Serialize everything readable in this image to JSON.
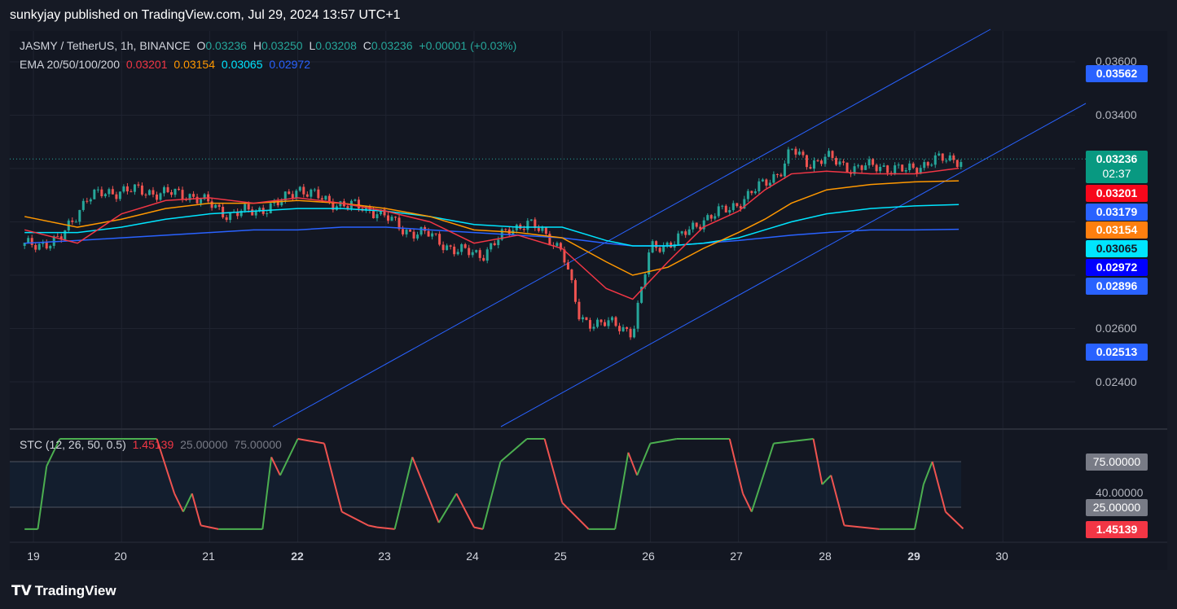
{
  "header": {
    "title": "sunkyjay published on TradingView.com, Jul 29, 2024 13:57 UTC+1"
  },
  "legend": {
    "symbol": "JASMY / TetherUS, 1h, BINANCE",
    "o_label": "O",
    "o": "0.03236",
    "h_label": "H",
    "h": "0.03250",
    "l_label": "L",
    "l": "0.03208",
    "c_label": "C",
    "c": "0.03236",
    "change": "+0.00001 (+0.03%)",
    "ema_label": "EMA 20/50/100/200",
    "ema20": "0.03201",
    "ema50": "0.03154",
    "ema100": "0.03065",
    "ema200": "0.02972",
    "stc_label": "STC (12, 26, 50, 0.5)",
    "stc_value": "1.45139",
    "stc_lower": "25.00000",
    "stc_upper": "75.00000"
  },
  "price_axis": [
    "0.03600",
    "0.03400",
    "0.02600",
    "0.02400"
  ],
  "stc_axis": [
    "40.00000"
  ],
  "chips": {
    "upper_channel": "0.03562",
    "last_price": "0.03236",
    "countdown": "02:37",
    "ema20": "0.03201",
    "mid_channel": "0.03179",
    "ema50": "0.03154",
    "ema100": "0.03065",
    "ema200": "0.02972",
    "line_a": "0.02896",
    "lower_channel": "0.02513",
    "stc_upper": "75.00000",
    "stc_lower": "25.00000",
    "stc_value": "1.45139"
  },
  "dates": [
    "19",
    "20",
    "21",
    "22",
    "23",
    "24",
    "25",
    "26",
    "27",
    "28",
    "29",
    "30"
  ],
  "colors": {
    "ema20": "#f23645",
    "ema50": "#ff9800",
    "ema100": "#00e5ff",
    "ema200": "#2962ff",
    "up": "#26a69a",
    "down": "#ef5350",
    "channel": "#2962ff",
    "stc_up": "#4caf50",
    "stc_down": "#ef5350"
  },
  "footer": {
    "brand": "TradingView"
  },
  "chart_data": [
    {
      "type": "line",
      "title": "JASMY / TetherUS, 1h, BINANCE",
      "x_dates": [
        "19",
        "20",
        "21",
        "22",
        "23",
        "24",
        "25",
        "26",
        "27",
        "28",
        "29",
        "30"
      ],
      "ylim": [
        0.0232,
        0.037
      ],
      "close_approx": {
        "x": [
          18.9,
          19.3,
          19.6,
          20.0,
          20.4,
          20.8,
          21.2,
          21.5,
          21.8,
          22.0,
          22.3,
          22.6,
          22.9,
          23.2,
          23.5,
          23.8,
          24.1,
          24.4,
          24.6,
          24.8,
          25.0,
          25.2,
          25.5,
          25.8,
          26.0,
          26.3,
          26.6,
          26.9,
          27.2,
          27.5,
          27.6,
          27.8,
          28.0,
          28.3,
          28.6,
          28.9,
          29.2,
          29.5
        ],
        "y": [
          0.0291,
          0.0293,
          0.0309,
          0.0312,
          0.0311,
          0.031,
          0.0303,
          0.0304,
          0.0307,
          0.0313,
          0.0308,
          0.0306,
          0.0304,
          0.0297,
          0.0295,
          0.0289,
          0.0288,
          0.0297,
          0.03,
          0.0295,
          0.029,
          0.0263,
          0.0262,
          0.0259,
          0.029,
          0.0293,
          0.0301,
          0.0305,
          0.0312,
          0.032,
          0.0327,
          0.0322,
          0.0324,
          0.032,
          0.0321,
          0.0319,
          0.0323,
          0.03236
        ]
      },
      "ema20_x": [
        18.9,
        19.5,
        20.0,
        20.5,
        21.0,
        21.5,
        22.0,
        22.5,
        23.0,
        23.5,
        24.0,
        24.5,
        25.0,
        25.5,
        25.8,
        26.2,
        26.6,
        27.0,
        27.3,
        27.6,
        28.0,
        28.5,
        29.0,
        29.5
      ],
      "ema20_y": [
        0.0297,
        0.0292,
        0.0303,
        0.0308,
        0.0309,
        0.0307,
        0.0309,
        0.0307,
        0.0304,
        0.03,
        0.0292,
        0.0295,
        0.029,
        0.0275,
        0.0271,
        0.0285,
        0.0298,
        0.0304,
        0.0312,
        0.0318,
        0.0319,
        0.0318,
        0.0318,
        0.03201
      ],
      "ema50_y": [
        0.0302,
        0.0298,
        0.0301,
        0.0305,
        0.0307,
        0.0307,
        0.0308,
        0.0307,
        0.0305,
        0.0302,
        0.0297,
        0.0296,
        0.0294,
        0.0285,
        0.028,
        0.0283,
        0.029,
        0.0296,
        0.0301,
        0.0307,
        0.0312,
        0.0314,
        0.0315,
        0.03154
      ],
      "ema100_y": [
        0.0296,
        0.0296,
        0.0298,
        0.0301,
        0.0303,
        0.0304,
        0.0305,
        0.0305,
        0.0304,
        0.0302,
        0.0299,
        0.0298,
        0.0298,
        0.0293,
        0.0291,
        0.0291,
        0.0292,
        0.0294,
        0.0297,
        0.03,
        0.0303,
        0.0305,
        0.0306,
        0.03065
      ],
      "ema200_y": [
        0.0292,
        0.0293,
        0.0294,
        0.0295,
        0.0296,
        0.0297,
        0.0297,
        0.0298,
        0.0298,
        0.0297,
        0.0296,
        0.0295,
        0.0294,
        0.0292,
        0.0291,
        0.0291,
        0.0292,
        0.0293,
        0.0294,
        0.0295,
        0.0296,
        0.0297,
        0.0297,
        0.02972
      ]
    },
    {
      "type": "line",
      "title": "STC (12, 26, 50, 0.5)",
      "ylim": [
        -5,
        100
      ],
      "levels": [
        25,
        75
      ],
      "x": [
        18.9,
        19.05,
        19.15,
        19.3,
        20.4,
        20.6,
        20.7,
        20.8,
        20.9,
        21.1,
        21.6,
        21.7,
        21.8,
        22.0,
        22.3,
        22.5,
        22.8,
        22.9,
        23.1,
        23.3,
        23.6,
        23.8,
        24.0,
        24.1,
        24.3,
        24.6,
        24.8,
        25.0,
        25.3,
        25.6,
        25.75,
        25.85,
        26.0,
        26.3,
        26.9,
        27.05,
        27.15,
        27.4,
        27.85,
        27.95,
        28.05,
        28.2,
        28.6,
        29.0,
        29.1,
        29.2,
        29.35,
        29.55
      ],
      "y": [
        1,
        1,
        70,
        100,
        100,
        40,
        20,
        40,
        5,
        1,
        1,
        80,
        60,
        100,
        95,
        20,
        5,
        3,
        1,
        80,
        8,
        40,
        3,
        1,
        75,
        100,
        100,
        30,
        1,
        1,
        85,
        60,
        95,
        100,
        100,
        40,
        20,
        95,
        100,
        50,
        60,
        5,
        1,
        1,
        50,
        75,
        20,
        1.45
      ]
    }
  ]
}
